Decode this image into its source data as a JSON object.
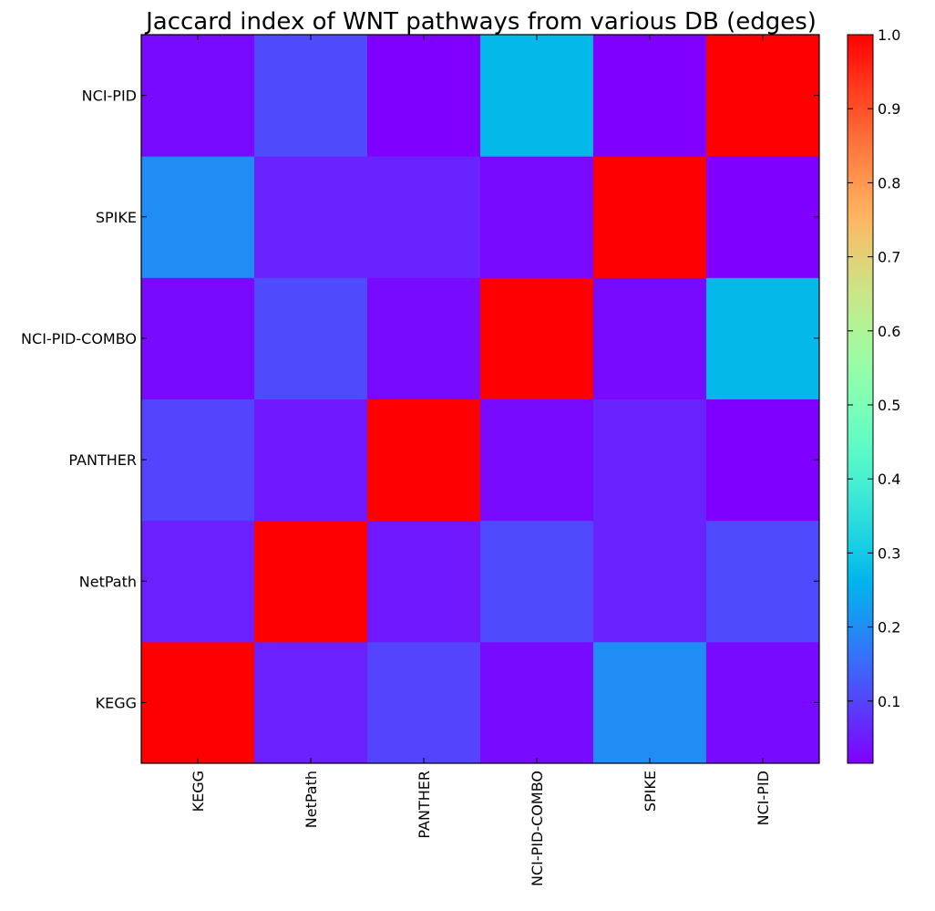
{
  "chart_data": {
    "type": "heatmap",
    "title": "Jaccard index of WNT pathways from various DB (edges)",
    "xlabel": "",
    "ylabel": "",
    "x_categories": [
      "KEGG",
      "NetPath",
      "PANTHER",
      "NCI-PID-COMBO",
      "SPIKE",
      "NCI-PID"
    ],
    "y_categories_bottom_to_top": [
      "KEGG",
      "NetPath",
      "PANTHER",
      "NCI-PID-COMBO",
      "SPIKE",
      "NCI-PID"
    ],
    "values": [
      [
        1.0,
        0.055,
        0.1,
        0.03,
        0.2,
        0.03
      ],
      [
        0.055,
        1.0,
        0.045,
        0.11,
        0.06,
        0.11
      ],
      [
        0.1,
        0.045,
        1.0,
        0.03,
        0.06,
        0.016
      ],
      [
        0.03,
        0.11,
        0.03,
        1.0,
        0.03,
        0.27
      ],
      [
        0.2,
        0.06,
        0.06,
        0.03,
        1.0,
        0.016
      ],
      [
        0.03,
        0.11,
        0.016,
        0.27,
        0.016,
        1.0
      ]
    ],
    "colormap": "rainbow",
    "colorbar": {
      "range": [
        0.016,
        1.0
      ],
      "ticks": [
        0.1,
        0.2,
        0.3,
        0.4,
        0.5,
        0.6,
        0.7,
        0.8,
        0.9,
        1.0
      ],
      "tick_labels": [
        "0.1",
        "0.2",
        "0.3",
        "0.4",
        "0.5",
        "0.6",
        "0.7",
        "0.8",
        "0.9",
        "1.0"
      ],
      "placement": "right"
    },
    "grid": false
  }
}
